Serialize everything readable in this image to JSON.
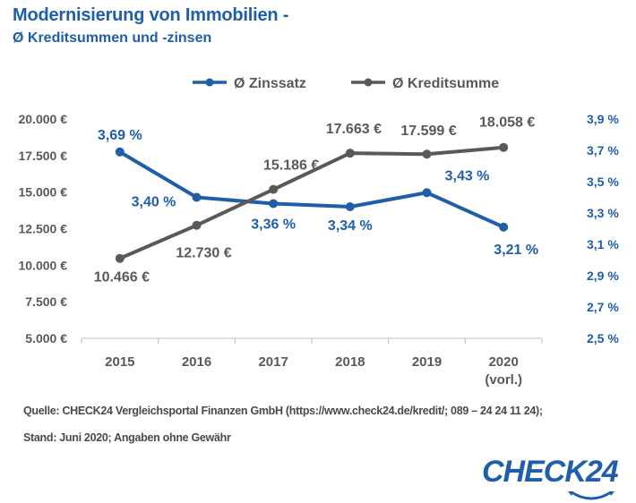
{
  "chart_data": {
    "type": "line",
    "title": "Modernisierung von Immobilien -",
    "subtitle": "Ø Kreditsummen und -zinsen",
    "categories": [
      "2015",
      "2016",
      "2017",
      "2018",
      "2019",
      "2020 (vorl.)"
    ],
    "category_lines": [
      [
        "2015"
      ],
      [
        "2016"
      ],
      [
        "2017"
      ],
      [
        "2018"
      ],
      [
        "2019"
      ],
      [
        "2020",
        "(vorl.)"
      ]
    ],
    "series": [
      {
        "name": "Ø Zinssatz",
        "axis": "right",
        "color": "#1f5ea8",
        "values": [
          3.69,
          3.4,
          3.36,
          3.34,
          3.43,
          3.21
        ],
        "labels": [
          "3,69 %",
          "3,40 %",
          "3,36 %",
          "3,34 %",
          "3,43 %",
          "3,21 %"
        ]
      },
      {
        "name": "Ø Kreditsumme",
        "axis": "left",
        "color": "#595959",
        "values": [
          10466,
          12730,
          15186,
          17663,
          17599,
          18058
        ],
        "labels": [
          "10.466 €",
          "12.730 €",
          "15.186 €",
          "17.663 €",
          "17.599 €",
          "18.058 €"
        ]
      }
    ],
    "left_axis": {
      "range": [
        5000,
        20000
      ],
      "ticks": [
        20000,
        17500,
        15000,
        12500,
        10000,
        7500,
        5000
      ],
      "tick_labels": [
        "20.000 €",
        "17.500 €",
        "15.000 €",
        "12.500 €",
        "10.000 €",
        "7.500 €",
        "5.000 €"
      ]
    },
    "right_axis": {
      "range": [
        2.5,
        3.9
      ],
      "ticks": [
        3.9,
        3.7,
        3.5,
        3.3,
        3.1,
        2.9,
        2.7,
        2.5
      ],
      "tick_labels": [
        "3,9 %",
        "3,7 %",
        "3,5 %",
        "3,3 %",
        "3,1 %",
        "2,9 %",
        "2,7 %",
        "2,5 %"
      ]
    },
    "legend_position": "top-center",
    "grid": false
  },
  "footer": {
    "source": "Quelle: CHECK24 Vergleichsportal Finanzen GmbH (https://www.check24.de/kredit/; 089 – 24 24 11 24);",
    "date": "Stand: Juni 2020; Angaben ohne Gewähr"
  },
  "logo": {
    "text": "CHECK24",
    "color": "#1f5ea8"
  }
}
